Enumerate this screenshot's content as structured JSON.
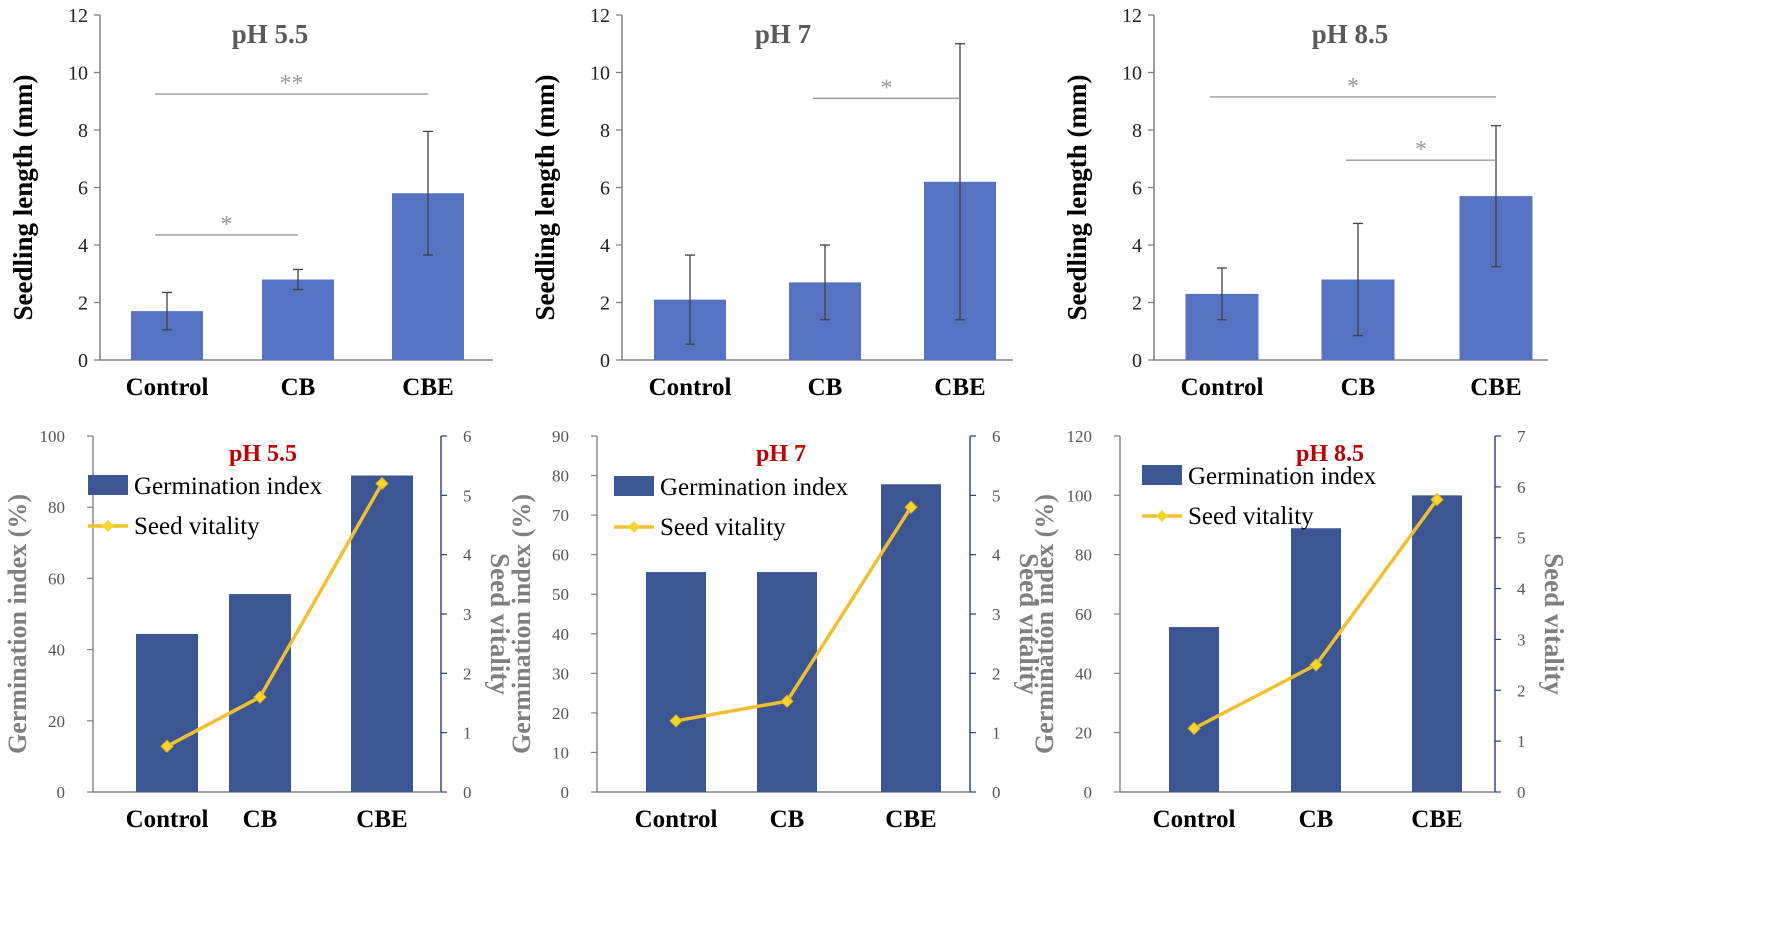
{
  "colors": {
    "bar_top": "#5572c3",
    "bar_bottom": "#3c5593",
    "line": "#f0c030",
    "marker": "#f5d629",
    "axis_left": "#808080",
    "axis_right": "#1f3f8f",
    "significance": "#999999",
    "error_bar": "#404040",
    "title_top": "#5a5a5a",
    "title_bottom": "#c00000"
  },
  "chart_data": [
    {
      "type": "bar",
      "title": "pH 5.5",
      "categories": [
        "Control",
        "CB",
        "CBE"
      ],
      "values": [
        1.7,
        2.8,
        5.8
      ],
      "errors": [
        0.65,
        0.35,
        2.15
      ],
      "ylabel": "Seedling length (mm)",
      "ylim": [
        0,
        12
      ],
      "yticks": [
        "0",
        "2",
        "4",
        "6",
        "8",
        "10",
        "12"
      ],
      "significance": [
        {
          "from": "Control",
          "to": "CBE",
          "label": "**",
          "level": 9.25
        },
        {
          "from": "Control",
          "to": "CB",
          "label": "*",
          "level": 4.35
        }
      ]
    },
    {
      "type": "bar",
      "title": "pH 7",
      "categories": [
        "Control",
        "CB",
        "CBE"
      ],
      "values": [
        2.1,
        2.7,
        6.2
      ],
      "errors": [
        1.55,
        1.3,
        4.8
      ],
      "ylabel": "Seedling length (mm)",
      "ylim": [
        0,
        12
      ],
      "yticks": [
        "0",
        "2",
        "4",
        "6",
        "8",
        "10",
        "12"
      ],
      "significance": [
        {
          "from": "CB",
          "to": "CBE",
          "label": "*",
          "level": 9.1
        }
      ]
    },
    {
      "type": "bar",
      "title": "pH 8.5",
      "categories": [
        "Control",
        "CB",
        "CBE"
      ],
      "values": [
        2.3,
        2.8,
        5.7
      ],
      "errors": [
        0.9,
        1.95,
        2.45
      ],
      "ylabel": "Seedling length (mm)",
      "ylim": [
        0,
        12
      ],
      "yticks": [
        "0",
        "2",
        "4",
        "6",
        "8",
        "10",
        "12"
      ],
      "significance": [
        {
          "from": "Control",
          "to": "CBE",
          "label": "*",
          "level": 9.15
        },
        {
          "from": "CB",
          "to": "CBE",
          "label": "*",
          "level": 6.95
        }
      ]
    },
    {
      "type": "bar+line",
      "title": "pH 5.5",
      "categories": [
        "Control",
        "CB",
        "CBE"
      ],
      "bar_series": {
        "name": "Germination index",
        "values": [
          44.4,
          55.6,
          88.9
        ]
      },
      "line_series": {
        "name": "Seed vitality",
        "values": [
          0.77,
          1.6,
          5.2
        ]
      },
      "ylabel": "Germination  index (%)",
      "y2label": "Seed vitality",
      "ylim": [
        0,
        100
      ],
      "yticks": [
        "0",
        "20",
        "40",
        "60",
        "80",
        "100"
      ],
      "y2lim": [
        0,
        6
      ],
      "y2ticks": [
        "0",
        "1",
        "2",
        "3",
        "4",
        "5",
        "6"
      ]
    },
    {
      "type": "bar+line",
      "title": "pH 7",
      "categories": [
        "Control",
        "CB",
        "CBE"
      ],
      "bar_series": {
        "name": "Germination index",
        "values": [
          55.6,
          55.6,
          77.8
        ]
      },
      "line_series": {
        "name": "Seed vitality",
        "values": [
          1.2,
          1.53,
          4.8
        ]
      },
      "ylabel": "Germination  index (%)",
      "y2label": "Seed vitality",
      "ylim": [
        0,
        90
      ],
      "yticks": [
        "0",
        "10",
        "20",
        "30",
        "40",
        "50",
        "60",
        "70",
        "80",
        "90"
      ],
      "y2lim": [
        0,
        6
      ],
      "y2ticks": [
        "0",
        "1",
        "2",
        "3",
        "4",
        "5",
        "6"
      ]
    },
    {
      "type": "bar+line",
      "title": "pH 8.5",
      "categories": [
        "Control",
        "CB",
        "CBE"
      ],
      "bar_series": {
        "name": "Germination index",
        "values": [
          55.6,
          88.9,
          100
        ]
      },
      "line_series": {
        "name": "Seed vitality",
        "values": [
          1.25,
          2.5,
          5.75
        ]
      },
      "ylabel": "Germination  index (%)",
      "y2label": "Seed vitality",
      "ylim": [
        0,
        120
      ],
      "yticks": [
        "0",
        "20",
        "40",
        "60",
        "80",
        "100",
        "120"
      ],
      "y2lim": [
        0,
        7
      ],
      "y2ticks": [
        "0",
        "1",
        "2",
        "3",
        "4",
        "5",
        "6",
        "7"
      ]
    }
  ]
}
